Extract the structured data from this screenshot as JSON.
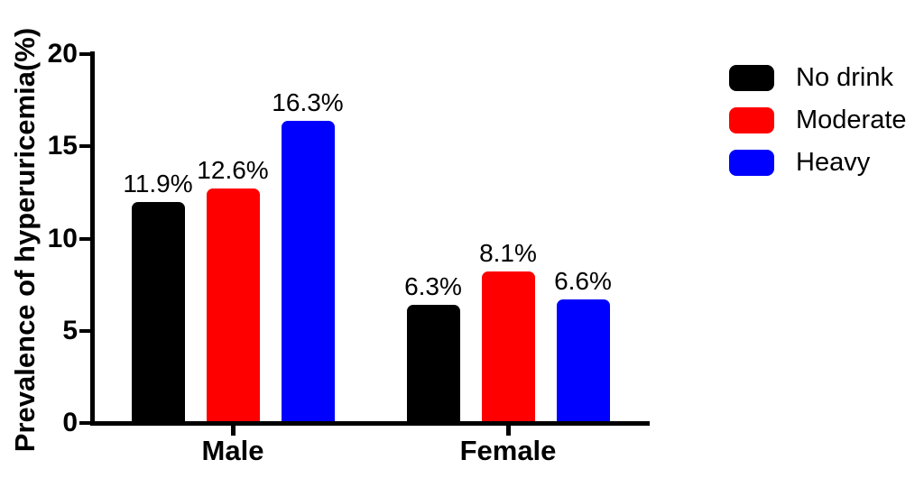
{
  "chart_data": {
    "type": "bar",
    "title": "",
    "xlabel": "",
    "ylabel": "Prevalence of hyperuricemia(%)",
    "ylim": [
      0,
      20
    ],
    "yticks": [
      "0",
      "5",
      "10",
      "15",
      "20"
    ],
    "ytick_values": [
      0,
      5,
      10,
      15,
      20
    ],
    "categories": [
      "Male",
      "Female"
    ],
    "series": [
      {
        "name": "No drink",
        "color": "#000000",
        "values": [
          11.9,
          6.3
        ],
        "labels": [
          "11.9%",
          "6.3%"
        ]
      },
      {
        "name": "Moderate",
        "color": "#ff0000",
        "values": [
          12.6,
          8.1
        ],
        "labels": [
          "12.6%",
          "8.1%"
        ]
      },
      {
        "name": "Heavy",
        "color": "#0000ff",
        "values": [
          16.3,
          6.6
        ],
        "labels": [
          "16.3%",
          "6.6%"
        ]
      }
    ],
    "legend_position": "right",
    "grid": false,
    "axis_color": "#000000",
    "background": "#ffffff"
  }
}
